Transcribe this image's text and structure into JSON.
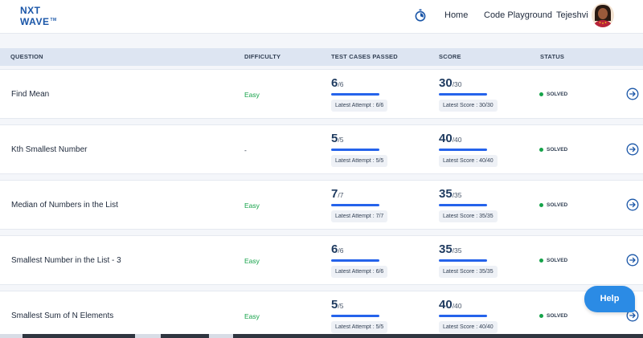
{
  "header": {
    "logo_line1": "NXT",
    "logo_line2": "WAVE",
    "logo_tm": "TM",
    "nav": {
      "home": "Home",
      "playground": "Code Playground",
      "user": "Tejeshvi"
    },
    "icons": {
      "timer": "timer-icon",
      "avatar": "avatar"
    },
    "accent_color": "#1a56a8"
  },
  "table": {
    "columns": [
      "QUESTION",
      "DIFFICULTY",
      "TEST CASES PASSED",
      "SCORE",
      "STATUS"
    ],
    "rows": [
      {
        "question": "Find Mean",
        "difficulty": "Easy",
        "tests_passed": "6",
        "tests_total": "/6",
        "tests_chip": "Latest Attempt : 6/6",
        "score": "30",
        "score_total": "/30",
        "score_chip": "Latest Score : 30/30",
        "status": "SOLVED"
      },
      {
        "question": "Kth Smallest Number",
        "difficulty": "-",
        "tests_passed": "5",
        "tests_total": "/5",
        "tests_chip": "Latest Attempt : 5/5",
        "score": "40",
        "score_total": "/40",
        "score_chip": "Latest Score : 40/40",
        "status": "SOLVED"
      },
      {
        "question": "Median of Numbers in the List",
        "difficulty": "Easy",
        "tests_passed": "7",
        "tests_total": "/7",
        "tests_chip": "Latest Attempt : 7/7",
        "score": "35",
        "score_total": "/35",
        "score_chip": "Latest Score : 35/35",
        "status": "SOLVED"
      },
      {
        "question": "Smallest Number in the List - 3",
        "difficulty": "Easy",
        "tests_passed": "6",
        "tests_total": "/6",
        "tests_chip": "Latest Attempt : 6/6",
        "score": "35",
        "score_total": "/35",
        "score_chip": "Latest Score : 35/35",
        "status": "SOLVED"
      },
      {
        "question": "Smallest Sum of N Elements",
        "difficulty": "Easy",
        "tests_passed": "5",
        "tests_total": "/5",
        "tests_chip": "Latest Attempt : 5/5",
        "score": "40",
        "score_total": "/40",
        "score_chip": "Latest Score : 40/40",
        "status": "SOLVED"
      }
    ],
    "status_color": "#16a34a",
    "easy_color": "#16a34a",
    "bar_color": "#2563eb",
    "row_icon": "arrow-right-circle-icon"
  },
  "help": {
    "label": "Help",
    "color": "#2b8be5"
  }
}
